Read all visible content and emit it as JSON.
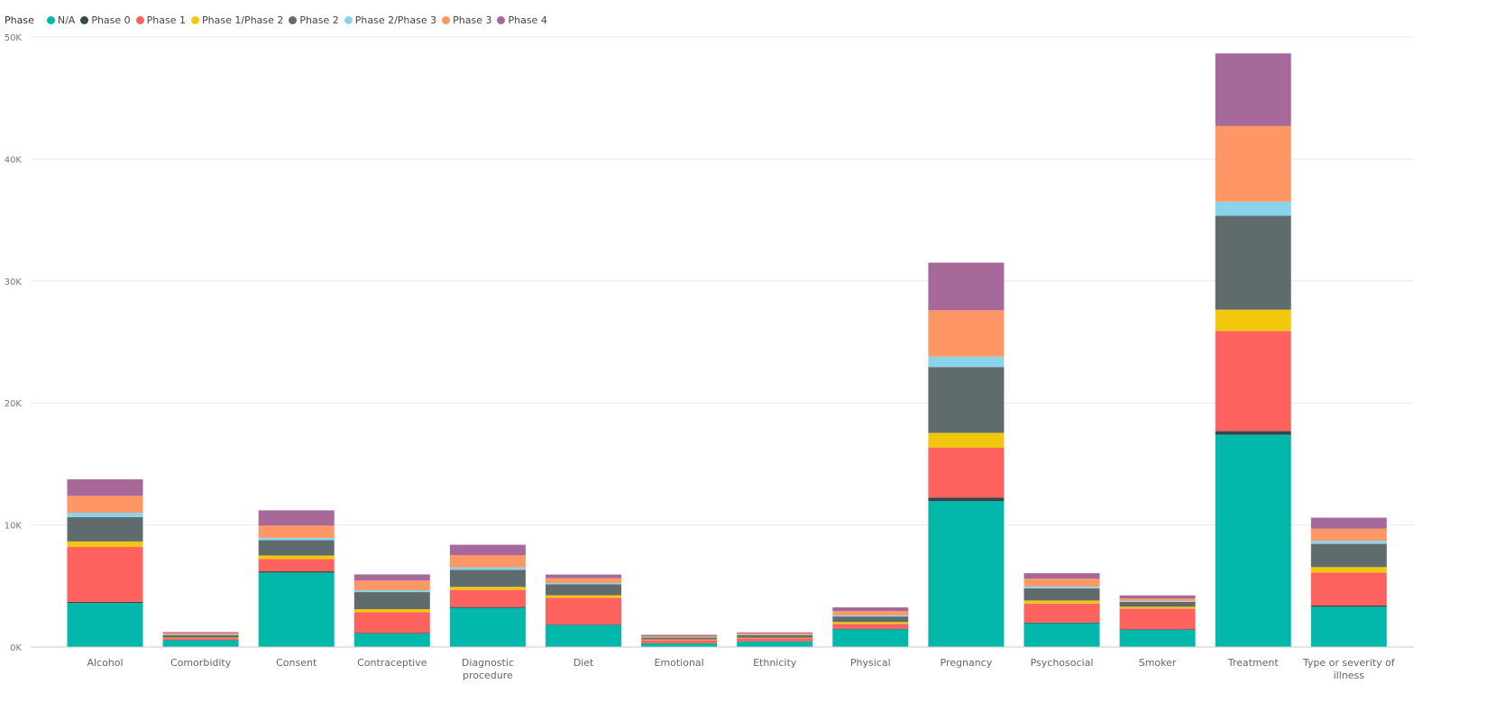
{
  "legend": {
    "title": "Phase"
  },
  "chart_data": {
    "type": "bar",
    "stacked": true,
    "title": "",
    "xlabel": "",
    "ylabel": "",
    "ylim": [
      0,
      50000
    ],
    "yticks": [
      {
        "value": 0,
        "label": "0K"
      },
      {
        "value": 10000,
        "label": "10K"
      },
      {
        "value": 20000,
        "label": "20K"
      },
      {
        "value": 30000,
        "label": "30K"
      },
      {
        "value": 40000,
        "label": "40K"
      },
      {
        "value": 50000,
        "label": "50K"
      }
    ],
    "grid": true,
    "legend_position": "top-left",
    "categories": [
      "Alcohol",
      "Comorbidity",
      "Consent",
      "Contraceptive",
      "Diagnostic procedure",
      "Diet",
      "Emotional",
      "Ethnicity",
      "Physical",
      "Pregnancy",
      "Psychosocial",
      "Smoker",
      "Treatment",
      "Type or severity of illness"
    ],
    "series": [
      {
        "name": "N/A",
        "color": "#01B8AA",
        "values": [
          3600,
          550,
          6100,
          1100,
          3200,
          1800,
          300,
          450,
          1450,
          11950,
          1950,
          1400,
          17400,
          3300
        ]
      },
      {
        "name": "Phase 0",
        "color": "#374649",
        "values": [
          100,
          30,
          100,
          50,
          80,
          40,
          20,
          20,
          50,
          300,
          60,
          50,
          300,
          100
        ]
      },
      {
        "name": "Phase 1",
        "color": "#FD625E",
        "values": [
          4500,
          150,
          1000,
          1700,
          1400,
          2200,
          250,
          250,
          400,
          4100,
          1550,
          1700,
          8200,
          2700
        ]
      },
      {
        "name": "Phase 1/Phase 2",
        "color": "#F2C80F",
        "values": [
          450,
          40,
          300,
          250,
          250,
          200,
          50,
          40,
          150,
          1200,
          250,
          150,
          1750,
          450
        ]
      },
      {
        "name": "Phase 2",
        "color": "#5F6B6D",
        "values": [
          2000,
          200,
          1250,
          1400,
          1400,
          900,
          150,
          200,
          450,
          5400,
          1000,
          400,
          7700,
          1900
        ]
      },
      {
        "name": "Phase 2/Phase 3",
        "color": "#8AD4EB",
        "values": [
          350,
          30,
          200,
          150,
          200,
          100,
          20,
          30,
          100,
          850,
          150,
          80,
          1150,
          250
        ]
      },
      {
        "name": "Phase 3",
        "color": "#FE9666",
        "values": [
          1400,
          120,
          1000,
          800,
          1000,
          400,
          100,
          130,
          350,
          3800,
          650,
          200,
          6200,
          1000
        ]
      },
      {
        "name": "Phase 4",
        "color": "#A66999",
        "values": [
          1350,
          100,
          1250,
          500,
          850,
          300,
          110,
          80,
          300,
          3900,
          440,
          250,
          5950,
          900
        ]
      }
    ]
  }
}
